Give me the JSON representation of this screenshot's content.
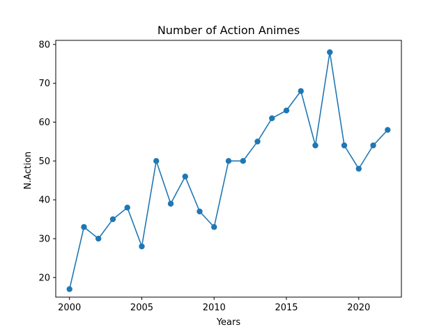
{
  "chart_data": {
    "type": "line",
    "title": "Number of Action Animes",
    "xlabel": "Years",
    "ylabel": "N.Action",
    "xlim": [
      1999.05,
      2022.95
    ],
    "ylim": [
      14.95,
      81.05
    ],
    "xticks": [
      2000,
      2005,
      2010,
      2015,
      2020
    ],
    "yticks": [
      20,
      30,
      40,
      50,
      60,
      70,
      80
    ],
    "grid": false,
    "series": [
      {
        "color": "#1f77b4",
        "marker": "circle",
        "x": [
          2000,
          2001,
          2002,
          2003,
          2004,
          2005,
          2006,
          2007,
          2008,
          2009,
          2010,
          2011,
          2012,
          2013,
          2014,
          2015,
          2016,
          2017,
          2018,
          2019,
          2020,
          2021,
          2022
        ],
        "y": [
          17,
          33,
          30,
          35,
          38,
          28,
          50,
          39,
          46,
          37,
          33,
          50,
          50,
          55,
          61,
          63,
          68,
          54,
          78,
          54,
          48,
          54,
          58
        ]
      }
    ]
  }
}
